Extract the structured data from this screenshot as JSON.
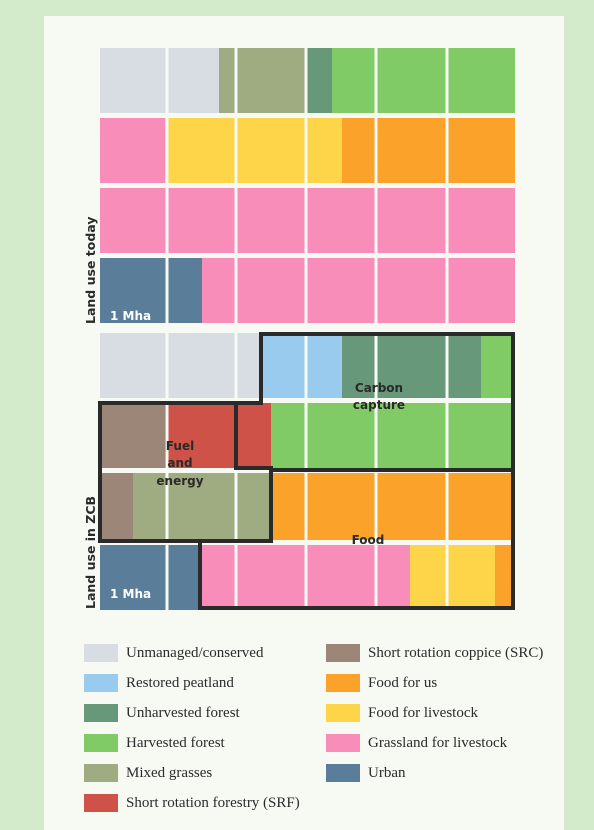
{
  "colors": {
    "unmanaged": "#d8dde3",
    "peatland": "#98cbed",
    "unharvested": "#68987a",
    "harvested": "#81cb67",
    "mixed": "#9fab80",
    "srf": "#cf5248",
    "src": "#9b8677",
    "food_us": "#faa22a",
    "food_livestock": "#fed449",
    "grassland": "#f98db9",
    "urban": "#5a7d99",
    "outline": "#2a2a2a"
  },
  "sections": {
    "today": {
      "side_label": "Land use today",
      "unit_label": "1 Mha"
    },
    "zcb": {
      "side_label": "Land use in ZCB",
      "unit_label": "1 Mha"
    }
  },
  "regions": {
    "carbon": {
      "line1": "Carbon",
      "line2": "capture"
    },
    "fuel": {
      "line1": "Fuel",
      "line2": "and",
      "line3": "energy"
    },
    "food": {
      "line1": "Food"
    }
  },
  "legend": {
    "unmanaged": "Unmanaged/conserved",
    "peatland": "Restored peatland",
    "unharvested": "Unharvested forest",
    "harvested": "Harvested forest",
    "mixed": "Mixed grasses",
    "srf": "Short rotation forestry (SRF)",
    "src": "Short rotation coppice (SRC)",
    "food_us": "Food for us",
    "food_livestock": "Food for livestock",
    "grassland": "Grassland for livestock",
    "urban": "Urban"
  }
}
